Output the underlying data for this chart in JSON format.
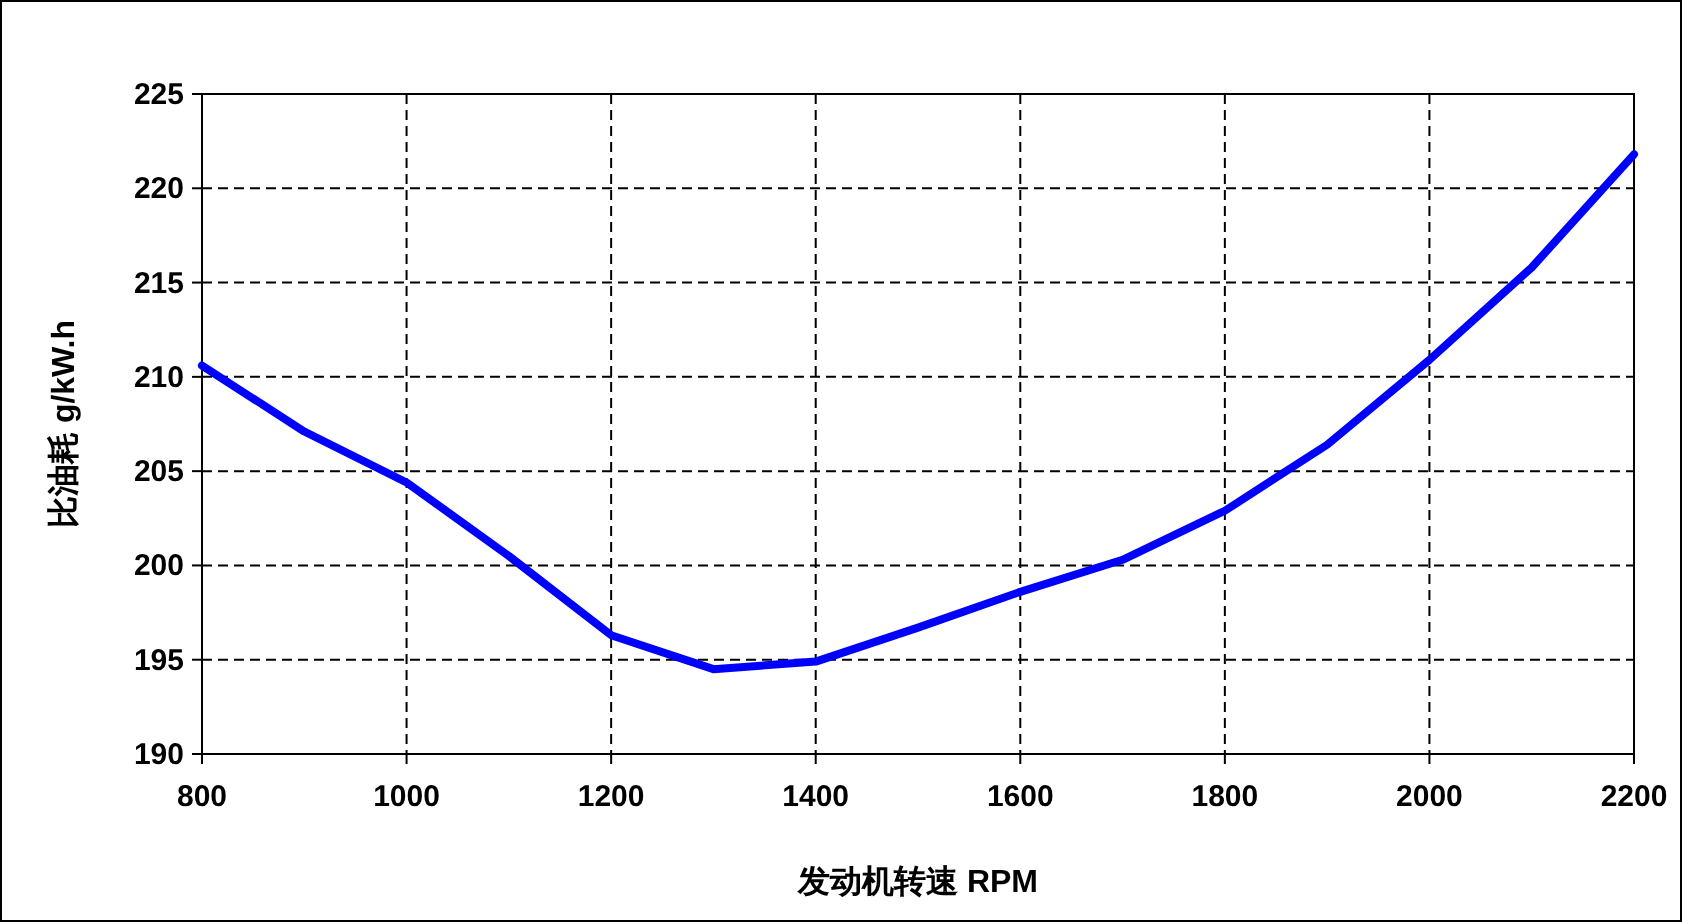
{
  "chart_data": {
    "type": "line",
    "xlabel": "发动机转速 RPM",
    "ylabel": "比油耗 g/kW.h",
    "x": [
      800,
      900,
      1000,
      1100,
      1200,
      1300,
      1400,
      1500,
      1600,
      1700,
      1800,
      1900,
      2000,
      2100,
      2200
    ],
    "series": [
      {
        "color": "#0000ff",
        "values": [
          210.6,
          207.1,
          204.4,
          200.5,
          196.3,
          194.5,
          194.9,
          196.7,
          198.6,
          200.3,
          202.9,
          206.4,
          210.9,
          215.8,
          221.8
        ]
      }
    ],
    "xlim": [
      800,
      2200
    ],
    "xticks": [
      800,
      1000,
      1200,
      1400,
      1600,
      1800,
      2000,
      2200
    ],
    "ylim": [
      190,
      225
    ],
    "yticks": [
      190,
      195,
      200,
      205,
      210,
      215,
      220,
      225
    ],
    "grid": true,
    "marker": "none",
    "line_style": "solid"
  }
}
